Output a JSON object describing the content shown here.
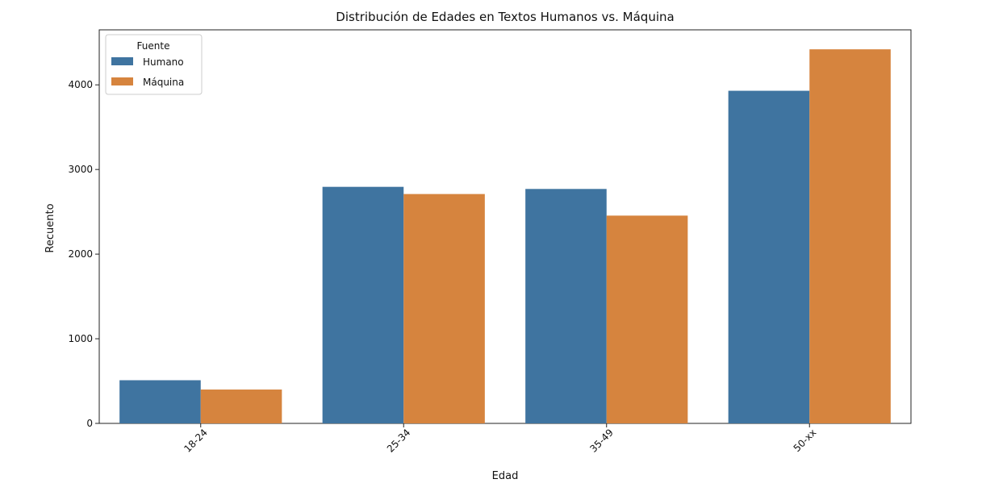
{
  "chart_data": {
    "type": "bar",
    "title": "Distribución de Edades en Textos Humanos vs. Máquina",
    "xlabel": "Edad",
    "ylabel": "Recuento",
    "categories": [
      "18-24",
      "25-34",
      "35-49",
      "50-xx"
    ],
    "series": [
      {
        "name": "Humano",
        "values": [
          510,
          2795,
          2770,
          3930
        ],
        "color": "#3f74a0"
      },
      {
        "name": "Máquina",
        "values": [
          400,
          2710,
          2455,
          4420
        ],
        "color": "#d6843e"
      }
    ],
    "ylim": [
      0,
      4650
    ],
    "yticks": [
      0,
      1000,
      2000,
      3000,
      4000
    ],
    "yticklabels": [
      "0",
      "1000",
      "2000",
      "3000",
      "4000"
    ],
    "legend": {
      "title": "Fuente",
      "placement": "top-left"
    },
    "grid": false
  }
}
